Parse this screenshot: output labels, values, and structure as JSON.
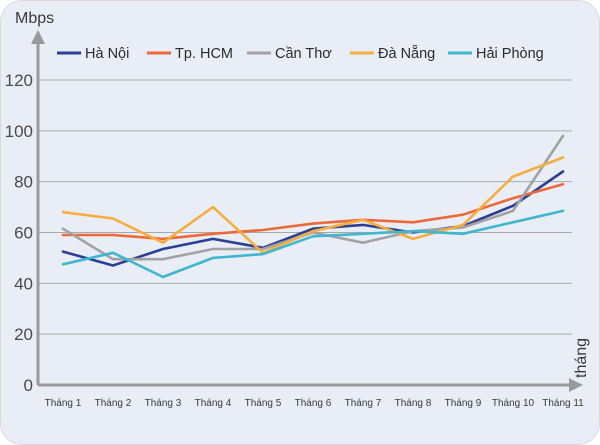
{
  "chart_data": {
    "type": "line",
    "ylabel": "Mbps",
    "xlabel": "tháng",
    "ylim": [
      0,
      130
    ],
    "yticks": [
      "0",
      "20",
      "40",
      "60",
      "80",
      "100",
      "120"
    ],
    "categories": [
      "Tháng 1",
      "Tháng 2",
      "Tháng 3",
      "Tháng 4",
      "Tháng 5",
      "Tháng 6",
      "Tháng 7",
      "Tháng 8",
      "Tháng 9",
      "Tháng 10",
      "Tháng 11"
    ],
    "grid": true,
    "legend": "top",
    "series": [
      {
        "name": "Hà Nội",
        "color": "#2b3f93",
        "values": [
          52.5,
          47,
          53.5,
          57.5,
          54,
          61.5,
          63,
          60,
          62.5,
          70.5,
          84
        ]
      },
      {
        "name": "Tp. HCM",
        "color": "#ec6a3a",
        "values": [
          59,
          59,
          57.5,
          59.5,
          61,
          63.5,
          65,
          64,
          67,
          73.5,
          79
        ]
      },
      {
        "name": "Cần Thơ",
        "color": "#a2a2a2",
        "values": [
          61.5,
          49.5,
          49.5,
          53.5,
          53.5,
          60,
          56,
          60.5,
          62,
          68.5,
          98
        ]
      },
      {
        "name": "Đà Nẵng",
        "color": "#f6ad3f",
        "values": [
          68,
          65.5,
          56,
          70,
          52,
          60.5,
          65,
          57.5,
          63,
          82,
          89.5
        ]
      },
      {
        "name": "Hải Phòng",
        "color": "#40b7cf",
        "values": [
          47.5,
          52,
          42.5,
          50,
          51.5,
          58.5,
          59.5,
          60.5,
          59.5,
          64,
          68.5
        ]
      }
    ]
  }
}
